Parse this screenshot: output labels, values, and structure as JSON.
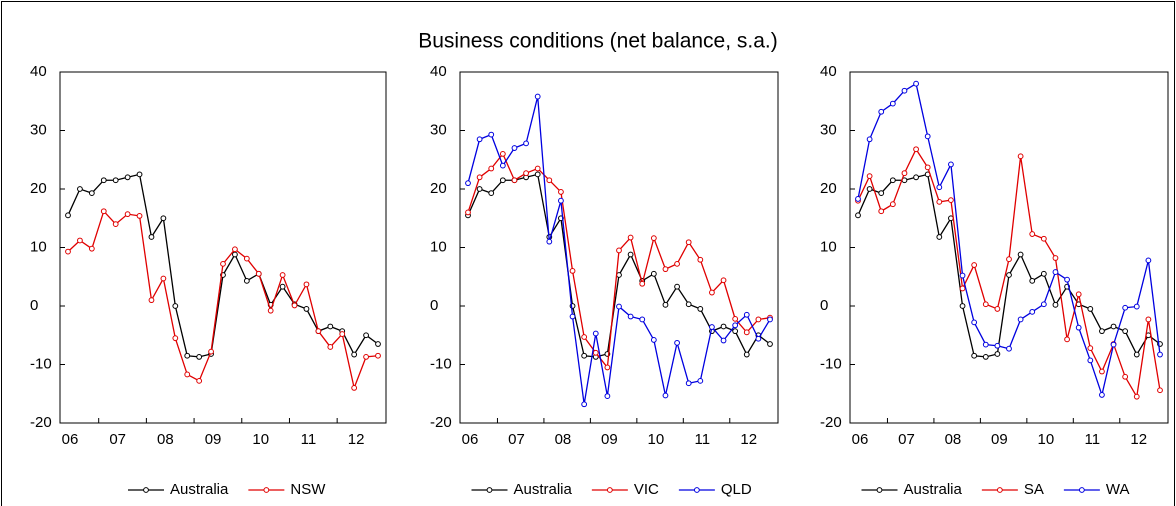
{
  "title": "Business conditions (net balance, s.a.)",
  "chart_data": [
    {
      "type": "line",
      "categories": [
        "06",
        null,
        null,
        null,
        "07",
        null,
        null,
        null,
        "08",
        null,
        null,
        null,
        "09",
        null,
        null,
        null,
        "10",
        null,
        null,
        null,
        "11",
        null,
        null,
        null,
        "12",
        null,
        null
      ],
      "ylim": [
        -20,
        40
      ],
      "yticks": [
        -20,
        -10,
        0,
        10,
        20,
        30,
        40
      ],
      "series": [
        {
          "name": "Australia",
          "color": "#000000",
          "values": [
            15.5,
            20,
            19.3,
            21.5,
            21.5,
            22,
            22.5,
            11.8,
            15,
            0,
            -8.5,
            -8.7,
            -8.2,
            5.3,
            8.8,
            4.3,
            5.5,
            0.2,
            3.3,
            0.3,
            -0.5,
            -4.3,
            -3.5,
            -4.3,
            -8.3,
            -5,
            -6.5
          ]
        },
        {
          "name": "NSW",
          "color": "#e00000",
          "values": [
            9.3,
            11.2,
            9.8,
            16.2,
            14,
            15.7,
            15.4,
            1,
            4.7,
            -5.5,
            -11.7,
            -12.8,
            -7.8,
            7.2,
            9.7,
            8.1,
            5.5,
            -0.8,
            5.3,
            0.1,
            3.7,
            -4.3,
            -7,
            -4.8,
            -14,
            -8.7,
            -8.5
          ]
        }
      ]
    },
    {
      "type": "line",
      "categories": [
        "06",
        null,
        null,
        null,
        "07",
        null,
        null,
        null,
        "08",
        null,
        null,
        null,
        "09",
        null,
        null,
        null,
        "10",
        null,
        null,
        null,
        "11",
        null,
        null,
        null,
        "12",
        null,
        null
      ],
      "ylim": [
        -20,
        40
      ],
      "yticks": [
        -20,
        -10,
        0,
        10,
        20,
        30,
        40
      ],
      "series": [
        {
          "name": "Australia",
          "color": "#000000",
          "values": [
            15.5,
            20,
            19.3,
            21.5,
            21.5,
            22,
            22.5,
            11.8,
            15,
            0,
            -8.5,
            -8.7,
            -8.2,
            5.3,
            8.8,
            4.3,
            5.5,
            0.2,
            3.3,
            0.3,
            -0.5,
            -4.3,
            -3.5,
            -4.3,
            -8.3,
            -5,
            -6.5
          ]
        },
        {
          "name": "VIC",
          "color": "#e00000",
          "values": [
            16,
            22,
            23.5,
            26,
            21.5,
            22.7,
            23.5,
            21.5,
            19.5,
            6,
            -5.3,
            -8,
            -10.5,
            9.5,
            11.7,
            3.8,
            11.6,
            6.3,
            7.2,
            10.9,
            7.9,
            2.3,
            4.4,
            -2.2,
            -4.5,
            -2.3,
            -2
          ]
        },
        {
          "name": "QLD",
          "color": "#0000e0",
          "values": [
            21,
            28.5,
            29.3,
            24,
            27,
            27.8,
            35.8,
            11,
            18,
            -1.8,
            -16.8,
            -4.7,
            -15.4,
            -0.1,
            -1.8,
            -2.3,
            -5.8,
            -15.3,
            -6.3,
            -13.2,
            -12.8,
            -3.6,
            -5.9,
            -3.3,
            -1.5,
            -5.6,
            -2.3
          ]
        }
      ]
    },
    {
      "type": "line",
      "categories": [
        "06",
        null,
        null,
        null,
        "07",
        null,
        null,
        null,
        "08",
        null,
        null,
        null,
        "09",
        null,
        null,
        null,
        "10",
        null,
        null,
        null,
        "11",
        null,
        null,
        null,
        "12",
        null,
        null
      ],
      "ylim": [
        -20,
        40
      ],
      "yticks": [
        -20,
        -10,
        0,
        10,
        20,
        30,
        40
      ],
      "series": [
        {
          "name": "Australia",
          "color": "#000000",
          "values": [
            15.5,
            20,
            19.3,
            21.5,
            21.5,
            22,
            22.5,
            11.8,
            15,
            0,
            -8.5,
            -8.7,
            -8.2,
            5.3,
            8.8,
            4.3,
            5.5,
            0.2,
            3.3,
            0.3,
            -0.5,
            -4.3,
            -3.5,
            -4.3,
            -8.3,
            -5,
            -6.5
          ]
        },
        {
          "name": "SA",
          "color": "#e00000",
          "values": [
            18,
            22.2,
            16.2,
            17.4,
            22.7,
            26.8,
            23.7,
            17.8,
            18.1,
            3,
            7,
            0.3,
            -0.5,
            8,
            25.6,
            12.3,
            11.5,
            8.2,
            -5.7,
            2,
            -7.2,
            -11.2,
            -6.5,
            -12.1,
            -15.5,
            -2.3,
            -14.4
          ]
        },
        {
          "name": "WA",
          "color": "#0000e0",
          "values": [
            18.3,
            28.5,
            33.2,
            34.6,
            36.8,
            38,
            29,
            20.3,
            24.2,
            5.2,
            -2.8,
            -6.6,
            -6.8,
            -7.3,
            -2.3,
            -1,
            0.3,
            5.8,
            4.5,
            -3.7,
            -9.3,
            -15.2,
            -6.6,
            -0.3,
            -0.1,
            7.8,
            -8.3
          ]
        }
      ]
    }
  ]
}
